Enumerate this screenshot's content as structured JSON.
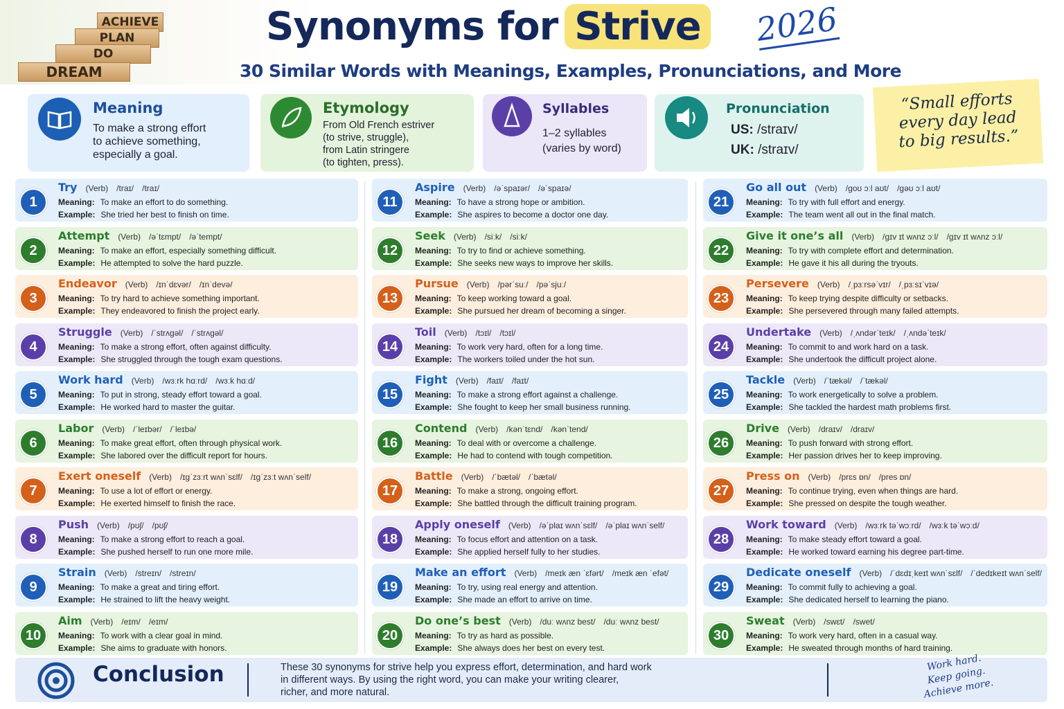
{
  "header": {
    "blocks": [
      "ACHIEVE",
      "PLAN",
      "DO",
      "DREAM"
    ],
    "title": "Synonyms for",
    "title_highlight": "Strive",
    "year": "2026",
    "subtitle": "30 Similar Words with Meanings, Examples, Pronunciations, and More"
  },
  "cards": {
    "meaning": {
      "title": "Meaning",
      "lines": [
        "To make a strong effort",
        "to achieve something,",
        "especially a goal."
      ]
    },
    "etymology": {
      "title": "Etymology",
      "lines": [
        "From Old French estriver",
        "(to strive, struggle),",
        "from Latin stringere",
        "(to tighten, press)."
      ]
    },
    "syllables": {
      "title": "Syllables",
      "lines": [
        "1–2 syllables",
        "(varies by word)"
      ]
    },
    "pronunciation": {
      "title": "Pronunciation",
      "us_label": "US:",
      "us": "/straɪv/",
      "uk_label": "UK:",
      "uk": "/straɪv/"
    }
  },
  "quote": [
    "“Small efforts",
    "every day lead",
    "to big results.”"
  ],
  "labels": {
    "pos": "(Verb)",
    "meaning": "Meaning:",
    "example": "Example:"
  },
  "words": [
    {
      "number": 1,
      "word": "Try",
      "us": "/traɪ/",
      "uk": "/traɪ/",
      "meaning": "To make an effort to do something.",
      "example": "She tried her best to finish on time."
    },
    {
      "number": 2,
      "word": "Attempt",
      "us": "/əˈtɛmpt/",
      "uk": "/əˈtempt/",
      "meaning": "To make an effort, especially something difficult.",
      "example": "He attempted to solve the hard puzzle."
    },
    {
      "number": 3,
      "word": "Endeavor",
      "us": "/ɪnˈdɛvər/",
      "uk": "/ɪnˈdevə/",
      "meaning": "To try hard to achieve something important.",
      "example": "They endeavored to finish the project early."
    },
    {
      "number": 4,
      "word": "Struggle",
      "us": "/ˈstrʌɡəl/",
      "uk": "/ˈstrʌɡəl/",
      "meaning": "To make a strong effort, often against difficulty.",
      "example": "She struggled through the tough exam questions."
    },
    {
      "number": 5,
      "word": "Work hard",
      "us": "/wɜːrk hɑːrd/",
      "uk": "/wɜːk hɑːd/",
      "meaning": "To put in strong, steady effort toward a goal.",
      "example": "He worked hard to master the guitar."
    },
    {
      "number": 6,
      "word": "Labor",
      "us": "/ˈleɪbər/",
      "uk": "/ˈleɪbə/",
      "meaning": "To make great effort, often through physical work.",
      "example": "She labored over the difficult report for hours."
    },
    {
      "number": 7,
      "word": "Exert oneself",
      "us": "/ɪɡˈzɜːrt wʌnˈsɛlf/",
      "uk": "/ɪɡˈzɜːt wʌnˈself/",
      "meaning": "To use a lot of effort or energy.",
      "example": "He exerted himself to finish the race."
    },
    {
      "number": 8,
      "word": "Push",
      "us": "/pʊʃ/",
      "uk": "/pʊʃ/",
      "meaning": "To make a strong effort to reach a goal.",
      "example": "She pushed herself to run one more mile."
    },
    {
      "number": 9,
      "word": "Strain",
      "us": "/streɪn/",
      "uk": "/streɪn/",
      "meaning": "To make a great and tiring effort.",
      "example": "He strained to lift the heavy weight."
    },
    {
      "number": 10,
      "word": "Aim",
      "us": "/eɪm/",
      "uk": "/eɪm/",
      "meaning": "To work with a clear goal in mind.",
      "example": "She aims to graduate with honors."
    },
    {
      "number": 11,
      "word": "Aspire",
      "us": "/əˈspaɪər/",
      "uk": "/əˈspaɪə/",
      "meaning": "To have a strong hope or ambition.",
      "example": "She aspires to become a doctor one day."
    },
    {
      "number": 12,
      "word": "Seek",
      "us": "/siːk/",
      "uk": "/siːk/",
      "meaning": "To try to find or achieve something.",
      "example": "She seeks new ways to improve her skills."
    },
    {
      "number": 13,
      "word": "Pursue",
      "us": "/pərˈsuː/",
      "uk": "/pəˈsjuː/",
      "meaning": "To keep working toward a goal.",
      "example": "She pursued her dream of becoming a singer."
    },
    {
      "number": 14,
      "word": "Toil",
      "us": "/tɔɪl/",
      "uk": "/tɔɪl/",
      "meaning": "To work very hard, often for a long time.",
      "example": "The workers toiled under the hot sun."
    },
    {
      "number": 15,
      "word": "Fight",
      "us": "/faɪt/",
      "uk": "/faɪt/",
      "meaning": "To make a strong effort against a challenge.",
      "example": "She fought to keep her small business running."
    },
    {
      "number": 16,
      "word": "Contend",
      "us": "/kənˈtɛnd/",
      "uk": "/kənˈtend/",
      "meaning": "To deal with or overcome a challenge.",
      "example": "He had to contend with tough competition."
    },
    {
      "number": 17,
      "word": "Battle",
      "us": "/ˈbætəl/",
      "uk": "/ˈbætəl/",
      "meaning": "To make a strong, ongoing effort.",
      "example": "She battled through the difficult training program."
    },
    {
      "number": 18,
      "word": "Apply oneself",
      "us": "/əˈplaɪ wʌnˈsɛlf/",
      "uk": "/əˈplaɪ wʌnˈself/",
      "meaning": "To focus effort and attention on a task.",
      "example": "She applied herself fully to her studies."
    },
    {
      "number": 19,
      "word": "Make an effort",
      "us": "/meɪk æn ˈɛfərt/",
      "uk": "/meɪk æn ˈefət/",
      "meaning": "To try, using real energy and attention.",
      "example": "She made an effort to arrive on time."
    },
    {
      "number": 20,
      "word": "Do one’s best",
      "us": "/duː wʌnz best/",
      "uk": "/duː wʌnz best/",
      "meaning": "To try as hard as possible.",
      "example": "She always does her best on every test."
    },
    {
      "number": 21,
      "word": "Go all out",
      "us": "/ɡoʊ ɔːl aʊt/",
      "uk": "/ɡəʊ ɔːl aʊt/",
      "meaning": "To try with full effort and energy.",
      "example": "The team went all out in the final match."
    },
    {
      "number": 22,
      "word": "Give it one’s all",
      "us": "/ɡɪv ɪt wʌnz ɔːl/",
      "uk": "/ɡɪv ɪt wʌnz ɔːl/",
      "meaning": "To try with complete effort and determination.",
      "example": "He gave it his all during the tryouts."
    },
    {
      "number": 23,
      "word": "Persevere",
      "us": "/ˌpɜːrsəˈvɪr/",
      "uk": "/ˌpɜːsɪˈvɪə/",
      "meaning": "To keep trying despite difficulty or setbacks.",
      "example": "She persevered through many failed attempts."
    },
    {
      "number": 24,
      "word": "Undertake",
      "us": "/ˌʌndərˈteɪk/",
      "uk": "/ˌʌndəˈteɪk/",
      "meaning": "To commit to and work hard on a task.",
      "example": "She undertook the difficult project alone."
    },
    {
      "number": 25,
      "word": "Tackle",
      "us": "/ˈtækəl/",
      "uk": "/ˈtækəl/",
      "meaning": "To work energetically to solve a problem.",
      "example": "She tackled the hardest math problems first."
    },
    {
      "number": 26,
      "word": "Drive",
      "us": "/draɪv/",
      "uk": "/draɪv/",
      "meaning": "To push forward with strong effort.",
      "example": "Her passion drives her to keep improving."
    },
    {
      "number": 27,
      "word": "Press on",
      "us": "/prɛs ɒn/",
      "uk": "/pres ɒn/",
      "meaning": "To continue trying, even when things are hard.",
      "example": "She pressed on despite the tough weather."
    },
    {
      "number": 28,
      "word": "Work toward",
      "us": "/wɜːrk təˈwɔːrd/",
      "uk": "/wɜːk təˈwɔːd/",
      "meaning": "To make steady effort toward a goal.",
      "example": "He worked toward earning his degree part-time."
    },
    {
      "number": 29,
      "word": "Dedicate oneself",
      "us": "/ˈdɛdɪˌkeɪt wʌnˈsɛlf/",
      "uk": "/ˈdedɪkeɪt wʌnˈself/",
      "meaning": "To commit fully to achieving a goal.",
      "example": "She dedicated herself to learning the piano."
    },
    {
      "number": 30,
      "word": "Sweat",
      "us": "/swɛt/",
      "uk": "/swet/",
      "meaning": "To work very hard, often in a casual way.",
      "example": "He sweated through months of hard training."
    }
  ],
  "conclusion": {
    "title": "Conclusion",
    "lines": [
      "These 30 synonyms for strive help you express effort, determination, and hard work",
      "in different ways. By using the right word, you can make your writing clearer,",
      "richer, and more natural."
    ],
    "sign": [
      "Work hard.",
      "Keep going.",
      "Achieve more."
    ]
  }
}
